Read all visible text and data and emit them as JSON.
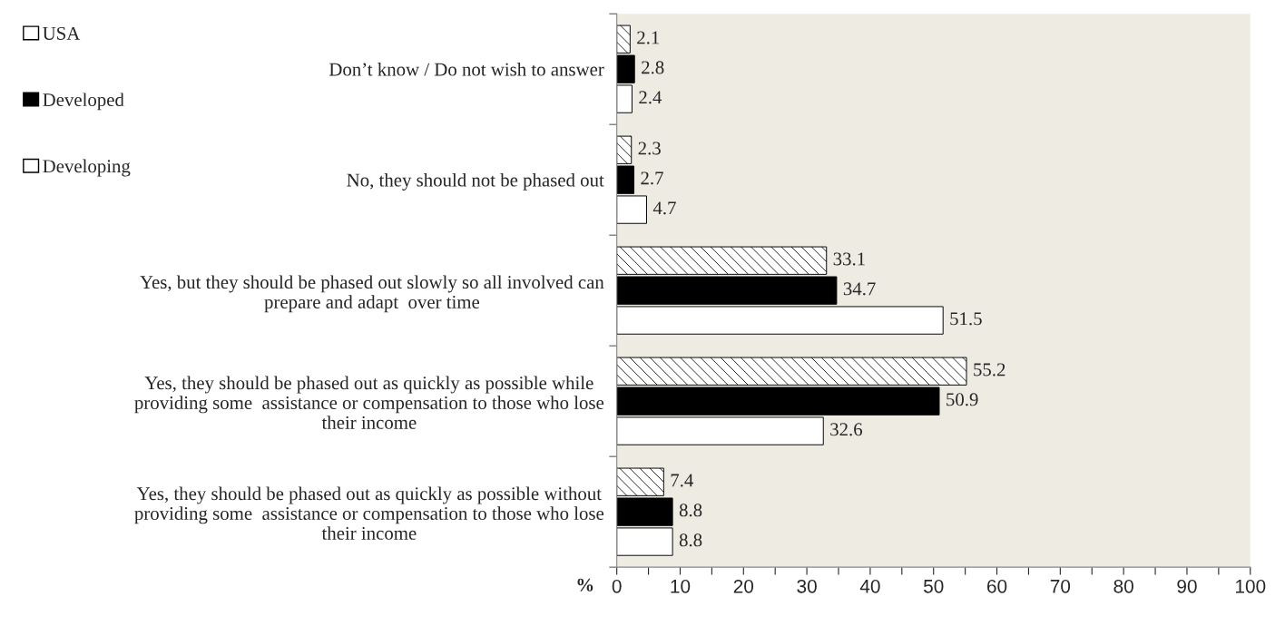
{
  "chart_data": {
    "type": "bar",
    "orientation": "horizontal",
    "xlabel": "%",
    "categories": [
      "Don’t know / Do not wish to answer",
      "No, they should not be phased out",
      "Yes, but they should be phased out slowly so all involved can\nprepare and adapt  over time",
      "Yes, they should be phased out as quickly as possible while\nproviding some  assistance or compensation to those who lose\ntheir income",
      "Yes, they should be phased out as quickly as possible without\nproviding some  assistance or compensation to those who lose\ntheir income"
    ],
    "series": [
      {
        "name": "USA",
        "color": "#ffffff",
        "values": [
          2.1,
          2.3,
          33.1,
          55.2,
          7.4
        ]
      },
      {
        "name": "Developed",
        "color": "#000000",
        "values": [
          2.8,
          2.7,
          34.7,
          50.9,
          8.8
        ]
      },
      {
        "name": "Developing",
        "color": "#ffffff",
        "values": [
          2.4,
          4.7,
          51.5,
          32.6,
          8.8
        ]
      }
    ],
    "xlim": [
      0,
      100
    ],
    "xticks": [
      0,
      {
        "value": 5,
        "label": null
      },
      10,
      {
        "value": 15,
        "label": null
      },
      20,
      {
        "value": 25,
        "label": null
      },
      30,
      {
        "value": 35,
        "label": null
      },
      40,
      {
        "value": 45,
        "label": null
      },
      50,
      {
        "value": 55,
        "label": null
      },
      60,
      {
        "value": 65,
        "label": null
      },
      70,
      {
        "value": 75,
        "label": null
      },
      80,
      {
        "value": 85,
        "label": null
      },
      90,
      {
        "value": 95,
        "label": null
      },
      100
    ],
    "data_labels": true,
    "grid": false,
    "legend": "top left"
  }
}
